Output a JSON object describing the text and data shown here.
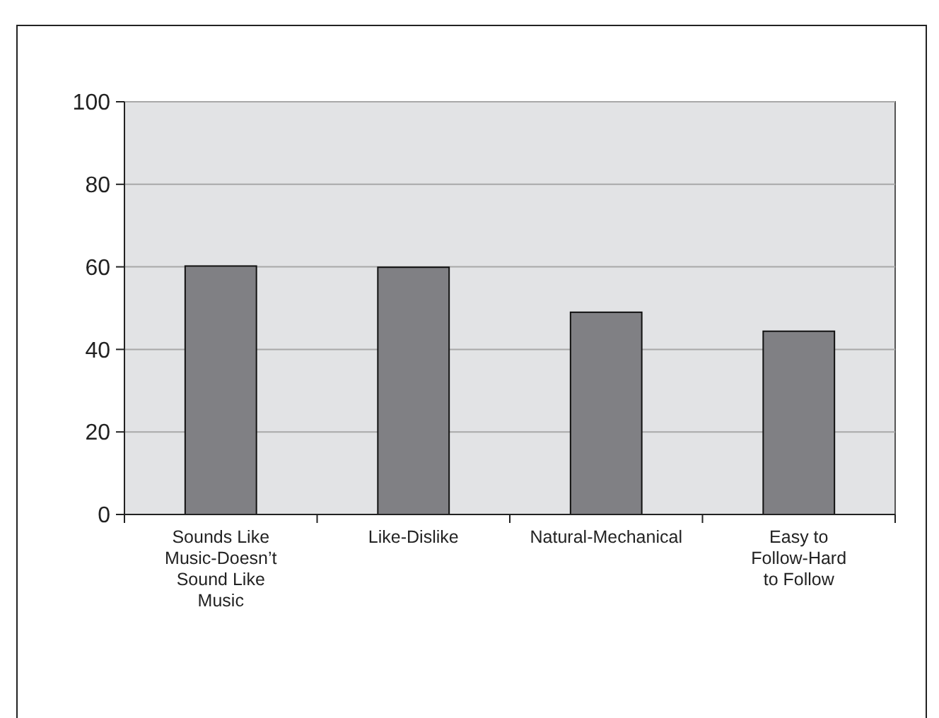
{
  "chart_data": {
    "type": "bar",
    "categories": [
      "Sounds Like Music-Doesn’t Sound Like Music",
      "Like-Dislike",
      "Natural-Mechanical",
      "Easy to Follow-Hard to Follow"
    ],
    "values": [
      60.2,
      59.9,
      49.0,
      44.4
    ],
    "color": "#808084",
    "ylim": [
      0,
      100
    ],
    "yticks": [
      0,
      20,
      40,
      60,
      80,
      100
    ],
    "grid": "y"
  }
}
